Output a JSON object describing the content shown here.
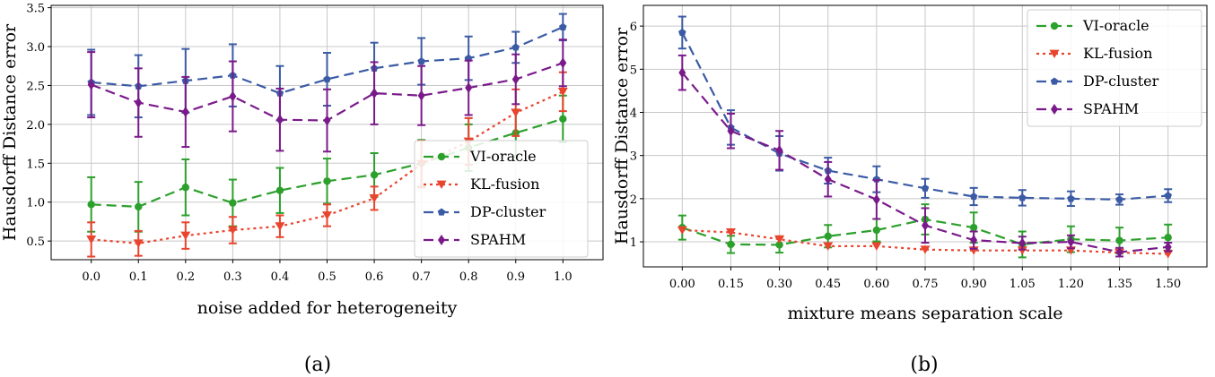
{
  "chart_data": [
    {
      "type": "line",
      "caption": "(a)",
      "xlabel": "noise added for heterogeneity",
      "ylabel": "Hausdorff Distance error",
      "x": [
        0.0,
        0.1,
        0.2,
        0.3,
        0.4,
        0.5,
        0.6,
        0.7,
        0.8,
        0.9,
        1.0
      ],
      "x_tick_labels": [
        "0.0",
        "0.1",
        "0.2",
        "0.3",
        "0.4",
        "0.5",
        "0.6",
        "0.7",
        "0.8",
        "0.9",
        "1.0"
      ],
      "y_ticks": [
        0.5,
        1.0,
        1.5,
        2.0,
        2.5,
        3.0,
        3.5
      ],
      "y_tick_labels": [
        "0.5",
        "1.0",
        "1.5",
        "2.0",
        "2.5",
        "3.0",
        "3.5"
      ],
      "xlim": [
        -0.085,
        1.085
      ],
      "ylim": [
        0.26,
        3.53
      ],
      "grid": true,
      "legend_position": "center-right",
      "series": [
        {
          "name": "VI-oracle",
          "color": "#2ca02c",
          "style": "dashed",
          "marker": "circle",
          "values": [
            0.97,
            0.94,
            1.19,
            0.99,
            1.15,
            1.27,
            1.35,
            1.5,
            1.7,
            1.89,
            2.07
          ],
          "errors": [
            0.35,
            0.32,
            0.36,
            0.3,
            0.29,
            0.29,
            0.28,
            0.3,
            0.3,
            0.3,
            0.3
          ]
        },
        {
          "name": "KL-fusion",
          "color": "#e8442e",
          "style": "dotted",
          "marker": "triangle-down",
          "values": [
            0.52,
            0.47,
            0.57,
            0.64,
            0.69,
            0.83,
            1.05,
            1.49,
            1.78,
            2.15,
            2.42
          ],
          "errors": [
            0.22,
            0.16,
            0.17,
            0.17,
            0.14,
            0.14,
            0.15,
            0.3,
            0.3,
            0.3,
            0.25
          ]
        },
        {
          "name": "DP-cluster",
          "color": "#3b5ba5",
          "style": "dashed",
          "marker": "pentagon",
          "values": [
            2.54,
            2.49,
            2.56,
            2.63,
            2.4,
            2.58,
            2.72,
            2.81,
            2.85,
            2.99,
            3.25
          ],
          "errors": [
            0.42,
            0.4,
            0.41,
            0.4,
            0.35,
            0.34,
            0.33,
            0.3,
            0.28,
            0.2,
            0.17
          ]
        },
        {
          "name": "SPAHM",
          "color": "#7a1a8a",
          "style": "dashed",
          "marker": "diamond",
          "values": [
            2.51,
            2.28,
            2.16,
            2.36,
            2.06,
            2.05,
            2.4,
            2.37,
            2.47,
            2.58,
            2.79
          ],
          "errors": [
            0.42,
            0.44,
            0.45,
            0.45,
            0.4,
            0.4,
            0.4,
            0.38,
            0.35,
            0.32,
            0.3
          ]
        }
      ]
    },
    {
      "type": "line",
      "caption": "(b)",
      "xlabel": "mixture means separation scale",
      "ylabel": "Hausdorff Distance error",
      "x": [
        0.0,
        0.15,
        0.3,
        0.45,
        0.6,
        0.75,
        0.9,
        1.05,
        1.2,
        1.35,
        1.5
      ],
      "x_tick_labels": [
        "0.00",
        "0.15",
        "0.30",
        "0.45",
        "0.60",
        "0.75",
        "0.90",
        "1.05",
        "1.20",
        "1.35",
        "1.50"
      ],
      "y_ticks": [
        1,
        2,
        3,
        4,
        5,
        6
      ],
      "y_tick_labels": [
        "1",
        "2",
        "3",
        "4",
        "5",
        "6"
      ],
      "xlim": [
        -0.12,
        1.62
      ],
      "ylim": [
        0.42,
        6.48
      ],
      "grid": true,
      "legend_position": "top-right",
      "series": [
        {
          "name": "VI-oracle",
          "color": "#2ca02c",
          "style": "dashed",
          "marker": "circle",
          "values": [
            1.33,
            0.94,
            0.93,
            1.13,
            1.27,
            1.52,
            1.33,
            0.94,
            1.06,
            1.03,
            1.1
          ],
          "errors": [
            0.28,
            0.2,
            0.18,
            0.26,
            0.26,
            0.35,
            0.35,
            0.3,
            0.3,
            0.3,
            0.3
          ]
        },
        {
          "name": "KL-fusion",
          "color": "#e8442e",
          "style": "dotted",
          "marker": "triangle-down",
          "values": [
            1.27,
            1.22,
            1.06,
            0.9,
            0.9,
            0.82,
            0.8,
            0.8,
            0.8,
            0.75,
            0.72
          ]
        },
        {
          "name": "DP-cluster",
          "color": "#3b5ba5",
          "style": "dashed",
          "marker": "pentagon",
          "values": [
            5.85,
            3.65,
            3.05,
            2.65,
            2.45,
            2.24,
            2.05,
            2.02,
            2.0,
            1.98,
            2.07
          ],
          "errors": [
            0.37,
            0.4,
            0.4,
            0.3,
            0.3,
            0.22,
            0.2,
            0.18,
            0.17,
            0.12,
            0.15
          ]
        },
        {
          "name": "SPAHM",
          "color": "#7a1a8a",
          "style": "dashed",
          "marker": "diamond",
          "values": [
            4.92,
            3.57,
            3.12,
            2.45,
            1.98,
            1.38,
            1.04,
            0.97,
            1.0,
            0.76,
            0.88
          ],
          "errors": [
            0.4,
            0.4,
            0.45,
            0.4,
            0.45,
            0.4,
            0.2,
            0.15,
            0.15,
            0.1,
            0.1
          ]
        }
      ]
    }
  ]
}
